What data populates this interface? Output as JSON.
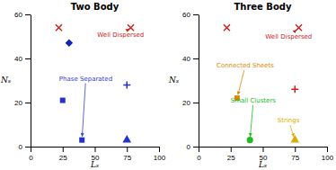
{
  "chart_data": [
    {
      "type": "scatter",
      "title": "Two Body",
      "x_label": "Lₛ",
      "y_label": "Nₛ",
      "series": [
        {
          "marker": "square",
          "color": "#2233cc",
          "x": [
            25
          ],
          "values": [
            21
          ]
        },
        {
          "marker": "square",
          "color": "#2233cc",
          "x": [
            40
          ],
          "values": [
            3
          ]
        },
        {
          "marker": "triangle-up",
          "color": "#2233cc",
          "x": [
            75
          ],
          "values": [
            3
          ]
        },
        {
          "marker": "plus",
          "color": "#2233cc",
          "x": [
            75
          ],
          "values": [
            28
          ]
        },
        {
          "marker": "diamond",
          "color": "#1122bb",
          "x": [
            30
          ],
          "values": [
            47
          ]
        },
        {
          "marker": "x",
          "color": "#cc2222",
          "x": [
            78
          ],
          "values": [
            54
          ]
        },
        {
          "marker": "x",
          "color": "#cc2222",
          "x": [
            22
          ],
          "values": [
            54
          ]
        }
      ],
      "annotations": [
        {
          "text": "Well Dispersed",
          "color": "#cc2222",
          "x": 78,
          "y": 54,
          "text_x": 52,
          "text_y": 50,
          "align": "left"
        },
        {
          "text": "Phase Separated",
          "color": "#3344cc",
          "x": 40,
          "y": 3,
          "text_x": 43,
          "text_y": 30,
          "align": "center"
        }
      ],
      "xlim": [
        0,
        100
      ],
      "ylim": [
        0,
        60
      ],
      "xticks": [
        0,
        25,
        50,
        75,
        100
      ],
      "yticks": [
        0,
        20,
        40,
        60
      ]
    },
    {
      "type": "scatter",
      "title": "Three Body",
      "x_label": "Lₛ",
      "y_label": "Nₛ",
      "series": [
        {
          "marker": "square",
          "color": "#dd8800",
          "x": [
            30
          ],
          "values": [
            22
          ]
        },
        {
          "marker": "circle",
          "color": "#22bb22",
          "x": [
            40
          ],
          "values": [
            3
          ]
        },
        {
          "marker": "triangle-up",
          "color": "#ddaa00",
          "x": [
            75
          ],
          "values": [
            3
          ]
        },
        {
          "marker": "plus",
          "color": "#cc2222",
          "x": [
            75
          ],
          "values": [
            26
          ]
        },
        {
          "marker": "x",
          "color": "#cc2222",
          "x": [
            78
          ],
          "values": [
            54
          ]
        },
        {
          "marker": "x",
          "color": "#cc2222",
          "x": [
            22
          ],
          "values": [
            54
          ]
        }
      ],
      "annotations": [
        {
          "text": "Well Dispersed",
          "color": "#cc2222",
          "x": 78,
          "y": 54,
          "text_x": 52,
          "text_y": 49,
          "align": "left"
        },
        {
          "text": "Connected Sheets",
          "color": "#dd8800",
          "x": 30,
          "y": 22,
          "text_x": 14,
          "text_y": 36,
          "align": "left"
        },
        {
          "text": "Small Clusters",
          "color": "#22bb22",
          "x": 40,
          "y": 3,
          "text_x": 25,
          "text_y": 20,
          "align": "left"
        },
        {
          "text": "Strings",
          "color": "#ddaa00",
          "x": 75,
          "y": 3,
          "text_x": 70,
          "text_y": 11,
          "align": "center"
        }
      ],
      "xlim": [
        0,
        100
      ],
      "ylim": [
        0,
        60
      ],
      "xticks": [
        0,
        25,
        50,
        75,
        100
      ],
      "yticks": [
        0,
        20,
        40,
        60
      ]
    }
  ]
}
